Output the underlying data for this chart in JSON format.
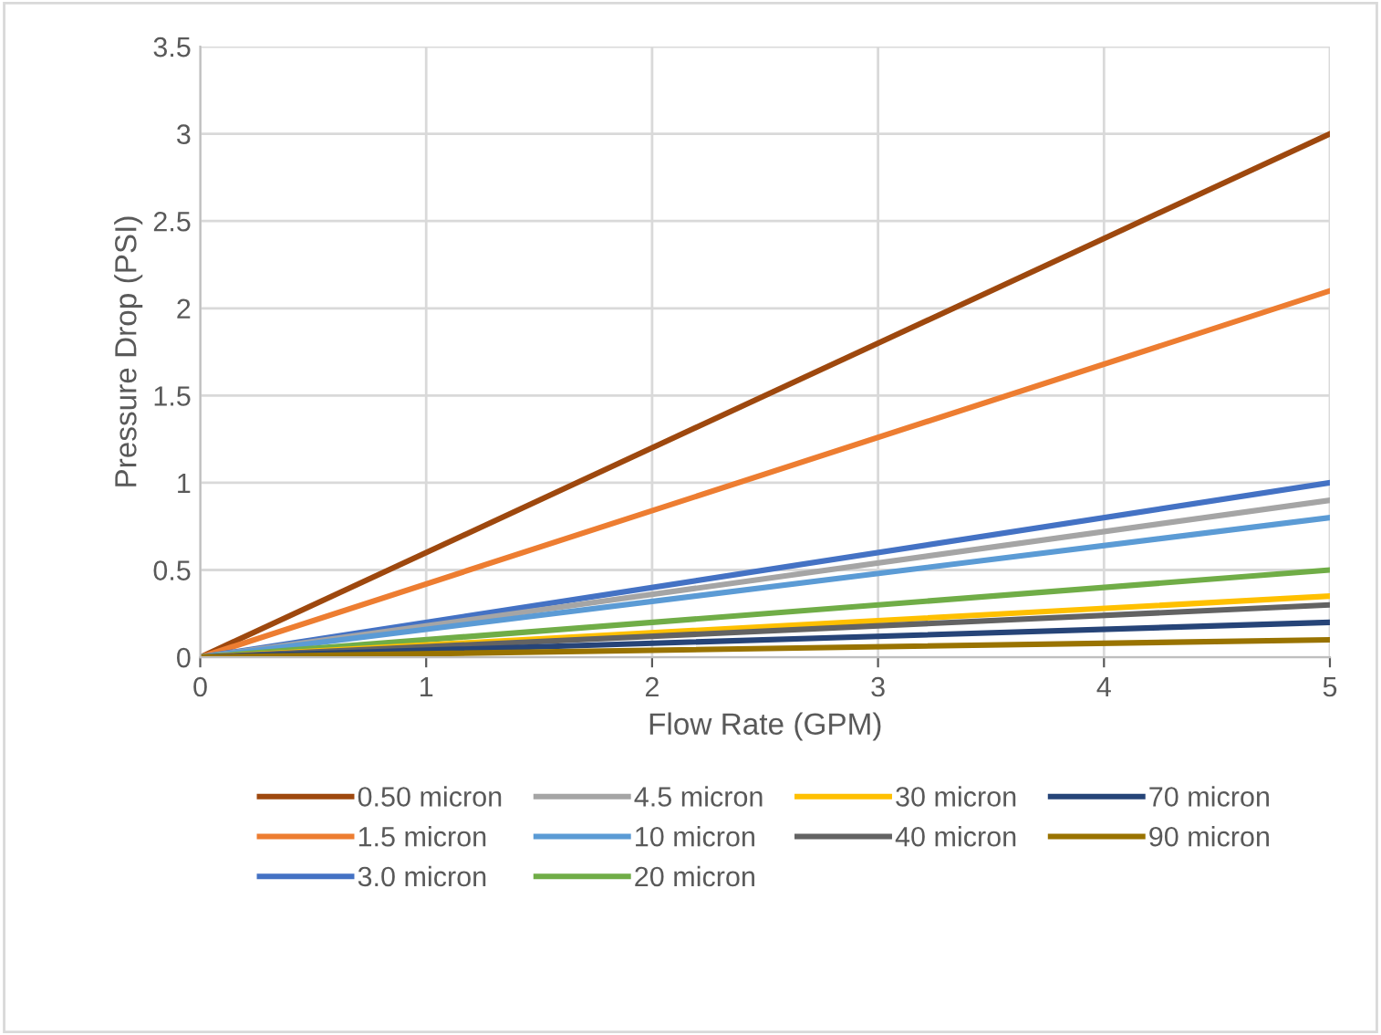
{
  "chart_data": {
    "type": "line",
    "xlabel": "Flow Rate (GPM)",
    "ylabel": "Pressure Drop (PSI)",
    "x": [
      0,
      5
    ],
    "xlim": [
      0,
      5
    ],
    "xticks": [
      0,
      1,
      2,
      3,
      4,
      5
    ],
    "ylim": [
      0,
      3.5
    ],
    "yticks": [
      0,
      0.5,
      1,
      1.5,
      2,
      2.5,
      3,
      3.5
    ],
    "grid": true,
    "legend": "bottom",
    "marker": "none",
    "line_style": "solid",
    "series": [
      {
        "name": "0.50 micron",
        "color": "#9e480e",
        "values": [
          0,
          3.0
        ]
      },
      {
        "name": "1.5 micron",
        "color": "#ed7d31",
        "values": [
          0,
          2.1
        ]
      },
      {
        "name": "3.0 micron",
        "color": "#4472c4",
        "values": [
          0,
          1.0
        ]
      },
      {
        "name": "4.5 micron",
        "color": "#a5a5a5",
        "values": [
          0,
          0.9
        ]
      },
      {
        "name": "10 micron",
        "color": "#5b9bd5",
        "values": [
          0,
          0.8
        ]
      },
      {
        "name": "20 micron",
        "color": "#70ad47",
        "values": [
          0,
          0.5
        ]
      },
      {
        "name": "30 micron",
        "color": "#ffc000",
        "values": [
          0,
          0.35
        ]
      },
      {
        "name": "40 micron",
        "color": "#636363",
        "values": [
          0,
          0.3
        ]
      },
      {
        "name": "70 micron",
        "color": "#264478",
        "values": [
          0,
          0.2
        ]
      },
      {
        "name": "90 micron",
        "color": "#997300",
        "values": [
          0,
          0.1
        ]
      }
    ]
  }
}
